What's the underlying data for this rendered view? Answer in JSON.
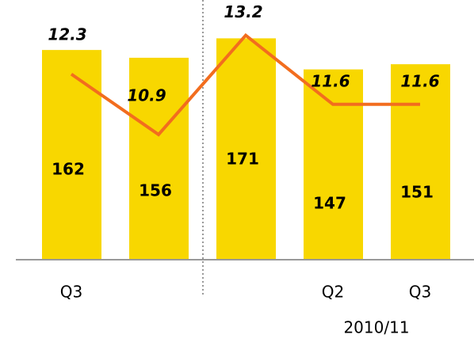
{
  "chart_data": {
    "type": "bar",
    "categories": [
      "Q3",
      null,
      null,
      "Q2",
      "Q3"
    ],
    "series": [
      {
        "type": "bar",
        "color": "#f8d700",
        "values": [
          162,
          156,
          171,
          147,
          151
        ]
      },
      {
        "type": "line",
        "axis": "y2",
        "color": "#f26d1e",
        "values": [
          12.3,
          10.9,
          13.2,
          11.6,
          11.6
        ]
      }
    ],
    "ylim": [
      0,
      200
    ],
    "y2lim": [
      8,
      14
    ],
    "annotation": "2010/11"
  }
}
